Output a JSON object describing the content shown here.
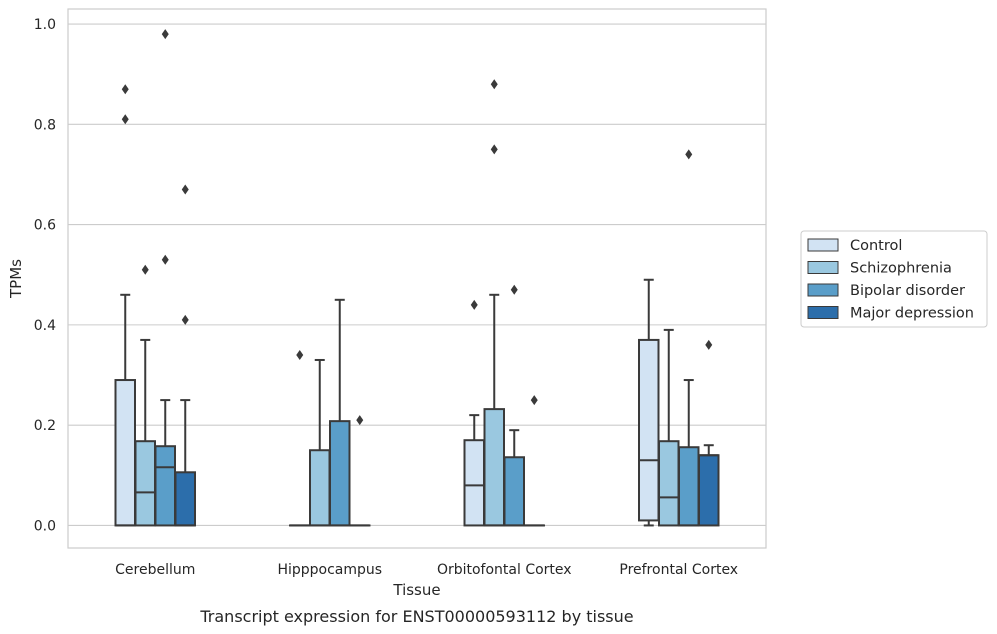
{
  "chart_data": {
    "type": "box",
    "title": "",
    "caption": "Transcript expression for ENST00000593112 by tissue",
    "xlabel": "Tissue",
    "ylabel": "TPMs",
    "ylim": [
      -0.045,
      1.03
    ],
    "yticks": [
      0.0,
      0.2,
      0.4,
      0.6,
      0.8,
      1.0
    ],
    "ytick_labels": [
      "0.0",
      "0.2",
      "0.4",
      "0.6",
      "0.8",
      "1.0"
    ],
    "grid": true,
    "legend_position": "right",
    "categories": [
      "Cerebellum",
      "Hipppocampus",
      "Orbitofontal Cortex",
      "Prefrontal Cortex"
    ],
    "series": [
      {
        "name": "Control",
        "color": "#d2e3f3",
        "boxes": [
          {
            "min": 0.0,
            "q1": 0.0,
            "median": 0.0,
            "q3": 0.29,
            "max": 0.46,
            "outliers": [
              0.81,
              0.87
            ]
          },
          {
            "min": 0.0,
            "q1": 0.0,
            "median": 0.0,
            "q3": 0.0,
            "max": 0.0,
            "outliers": [
              0.34
            ]
          },
          {
            "min": 0.0,
            "q1": 0.0,
            "median": 0.08,
            "q3": 0.17,
            "max": 0.22,
            "outliers": [
              0.44
            ]
          },
          {
            "min": 0.0,
            "q1": 0.01,
            "median": 0.13,
            "q3": 0.37,
            "max": 0.49,
            "outliers": []
          }
        ]
      },
      {
        "name": "Schizophrenia",
        "color": "#9ac8e0",
        "boxes": [
          {
            "min": 0.0,
            "q1": 0.0,
            "median": 0.066,
            "q3": 0.168,
            "max": 0.37,
            "outliers": [
              0.51
            ]
          },
          {
            "min": 0.0,
            "q1": 0.0,
            "median": 0.0,
            "q3": 0.15,
            "max": 0.33,
            "outliers": []
          },
          {
            "min": 0.0,
            "q1": 0.0,
            "median": 0.0,
            "q3": 0.232,
            "max": 0.46,
            "outliers": [
              0.75,
              0.88
            ]
          },
          {
            "min": 0.0,
            "q1": 0.0,
            "median": 0.056,
            "q3": 0.168,
            "max": 0.39,
            "outliers": []
          }
        ]
      },
      {
        "name": "Bipolar disorder",
        "color": "#5a9ec9",
        "boxes": [
          {
            "min": 0.0,
            "q1": 0.0,
            "median": 0.116,
            "q3": 0.158,
            "max": 0.25,
            "outliers": [
              0.53,
              0.98
            ]
          },
          {
            "min": 0.0,
            "q1": 0.0,
            "median": 0.0,
            "q3": 0.208,
            "max": 0.45,
            "outliers": []
          },
          {
            "min": 0.0,
            "q1": 0.0,
            "median": 0.0,
            "q3": 0.136,
            "max": 0.19,
            "outliers": [
              0.47
            ]
          },
          {
            "min": 0.0,
            "q1": 0.0,
            "median": 0.0,
            "q3": 0.156,
            "max": 0.29,
            "outliers": [
              0.74
            ]
          }
        ]
      },
      {
        "name": "Major depression",
        "color": "#2c6eab",
        "boxes": [
          {
            "min": 0.0,
            "q1": 0.0,
            "median": 0.0,
            "q3": 0.106,
            "max": 0.25,
            "outliers": [
              0.41,
              0.67
            ]
          },
          {
            "min": 0.0,
            "q1": 0.0,
            "median": 0.0,
            "q3": 0.0,
            "max": 0.0,
            "outliers": [
              0.21
            ]
          },
          {
            "min": 0.0,
            "q1": 0.0,
            "median": 0.0,
            "q3": 0.0,
            "max": 0.0,
            "outliers": [
              0.25
            ]
          },
          {
            "min": 0.0,
            "q1": 0.0,
            "median": 0.14,
            "q3": 0.14,
            "max": 0.16,
            "outliers": [
              0.36
            ]
          }
        ]
      }
    ]
  }
}
